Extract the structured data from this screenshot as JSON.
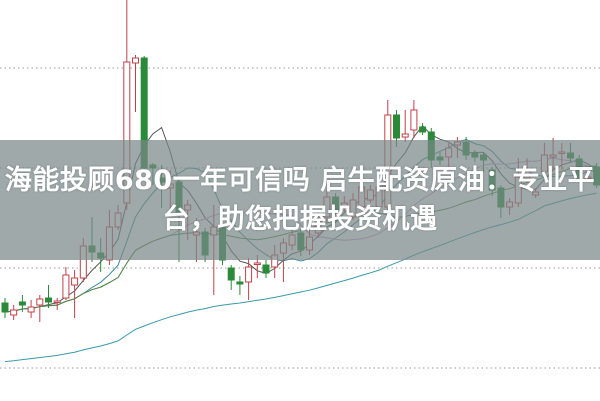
{
  "headline": {
    "line1": "海能投顾680一年可信吗 启牛配资原油：专业平",
    "line2": "台，助您把握投资机遇"
  },
  "chart_data": {
    "type": "candlestick",
    "title": "",
    "xlabel": "",
    "ylabel": "",
    "axis_labels_shown": false,
    "grid": "dotted horizontal",
    "ylim": [
      -0.33,
      3.68
    ],
    "gridlines": [
      0,
      1,
      2,
      3
    ],
    "colors": {
      "up": "#c0404a",
      "down": "#2a8a3a",
      "ma5": "#555555",
      "ma10": "#3a8a9a",
      "ma20": "#d090d0",
      "ma30": "#4a8a40",
      "ma60": "#3a9aaa",
      "grid": "#999999",
      "banner": "#7a8888"
    },
    "moving_averages": [
      5,
      10,
      20,
      30,
      60
    ],
    "candles_ohlc": [
      [
        0.65,
        0.7,
        0.5,
        0.56
      ],
      [
        0.53,
        0.63,
        0.48,
        0.58
      ],
      [
        0.66,
        0.73,
        0.56,
        0.63
      ],
      [
        0.56,
        0.68,
        0.5,
        0.61
      ],
      [
        0.63,
        0.73,
        0.46,
        0.69
      ],
      [
        0.7,
        0.83,
        0.6,
        0.66
      ],
      [
        0.66,
        0.7,
        0.58,
        0.67
      ],
      [
        0.7,
        1.01,
        0.68,
        0.93
      ],
      [
        0.83,
        0.98,
        0.5,
        0.9
      ],
      [
        0.9,
        1.3,
        0.86,
        1.22
      ],
      [
        1.22,
        1.51,
        1.06,
        1.16
      ],
      [
        1.15,
        1.3,
        0.96,
        1.1
      ],
      [
        1.08,
        1.58,
        1.03,
        1.41
      ],
      [
        1.41,
        1.63,
        1.38,
        1.55
      ],
      [
        1.65,
        3.68,
        1.58,
        3.06
      ],
      [
        3.05,
        3.13,
        2.56,
        3.1
      ],
      [
        3.1,
        3.12,
        1.98,
        2.0
      ],
      [
        2.03,
        2.05,
        1.83,
        2.0
      ],
      [
        1.9,
        2.03,
        1.6,
        1.86
      ],
      [
        1.8,
        1.98,
        1.58,
        1.84
      ],
      [
        1.86,
        1.9,
        1.06,
        1.55
      ],
      [
        1.58,
        1.68,
        1.28,
        1.63
      ],
      [
        1.33,
        1.5,
        1.06,
        1.36
      ],
      [
        1.36,
        1.4,
        1.06,
        1.13
      ],
      [
        1.33,
        1.63,
        0.73,
        1.41
      ],
      [
        1.41,
        1.45,
        1.03,
        1.08
      ],
      [
        1.0,
        1.03,
        0.78,
        0.88
      ],
      [
        0.86,
        0.92,
        0.73,
        0.84
      ],
      [
        0.86,
        1.1,
        0.68,
        1.01
      ],
      [
        1.04,
        1.13,
        0.9,
        1.05
      ],
      [
        1.03,
        1.08,
        0.9,
        0.95
      ],
      [
        1.01,
        1.23,
        0.9,
        1.13
      ],
      [
        1.15,
        1.3,
        0.86,
        1.25
      ],
      [
        1.23,
        1.4,
        1.18,
        1.33
      ],
      [
        1.35,
        1.4,
        1.12,
        1.18
      ],
      [
        1.18,
        1.38,
        1.13,
        1.31
      ],
      [
        1.35,
        1.56,
        1.3,
        1.51
      ],
      [
        1.51,
        1.78,
        1.45,
        1.71
      ],
      [
        1.71,
        1.75,
        1.53,
        1.58
      ],
      [
        1.6,
        1.72,
        1.55,
        1.65
      ],
      [
        1.51,
        1.75,
        1.48,
        1.68
      ],
      [
        1.61,
        1.86,
        1.58,
        1.81
      ],
      [
        1.68,
        1.83,
        1.65,
        1.78
      ],
      [
        1.61,
        1.88,
        1.58,
        1.81
      ],
      [
        1.61,
        2.68,
        1.55,
        2.53
      ],
      [
        2.53,
        2.58,
        2.21,
        2.3
      ],
      [
        2.31,
        2.58,
        2.26,
        2.34
      ],
      [
        2.38,
        2.68,
        2.3,
        2.58
      ],
      [
        2.41,
        2.45,
        2.33,
        2.36
      ],
      [
        2.36,
        2.4,
        2.0,
        2.08
      ],
      [
        2.11,
        2.16,
        2.03,
        2.08
      ],
      [
        2.11,
        2.25,
        1.98,
        2.2
      ],
      [
        2.23,
        2.31,
        2.1,
        2.26
      ],
      [
        2.26,
        2.31,
        2.08,
        2.13
      ],
      [
        2.15,
        2.18,
        2.06,
        2.11
      ],
      [
        2.13,
        2.16,
        1.96,
        2.08
      ],
      [
        1.98,
        2.01,
        1.72,
        1.78
      ],
      [
        1.8,
        1.83,
        1.5,
        1.61
      ],
      [
        1.61,
        1.7,
        1.53,
        1.66
      ],
      [
        1.65,
        2.1,
        1.61,
        1.91
      ],
      [
        1.9,
        2.1,
        1.85,
        1.98
      ],
      [
        1.73,
        1.8,
        1.7,
        1.76
      ],
      [
        1.96,
        2.25,
        1.9,
        2.13
      ],
      [
        2.11,
        2.3,
        1.98,
        2.13
      ],
      [
        2.15,
        2.25,
        1.98,
        2.16
      ],
      [
        2.15,
        2.25,
        2.05,
        2.1
      ],
      [
        2.09,
        2.13,
        1.86,
        1.9
      ],
      [
        1.9,
        1.96,
        1.86,
        1.91
      ],
      [
        2.01,
        2.05,
        1.8,
        1.83
      ]
    ]
  }
}
